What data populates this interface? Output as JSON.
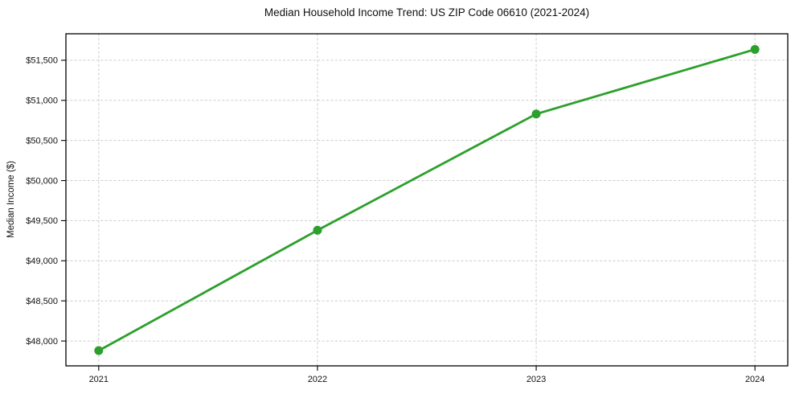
{
  "chart_data": {
    "type": "line",
    "title": "Median Household Income Trend: US ZIP Code 06610 (2021-2024)",
    "xlabel": "",
    "ylabel": "Median Income ($)",
    "x": [
      2021,
      2022,
      2023,
      2024
    ],
    "x_tick_labels": [
      "2021",
      "2022",
      "2023",
      "2024"
    ],
    "values": [
      47880,
      49380,
      50830,
      51635
    ],
    "y_ticks": [
      48000,
      48500,
      49000,
      49500,
      50000,
      50500,
      51000,
      51500
    ],
    "y_tick_labels": [
      "$48,000",
      "$48,500",
      "$49,000",
      "$49,500",
      "$50,000",
      "$50,500",
      "$51,000",
      "$51,500"
    ],
    "xlim": [
      2020.85,
      2024.15
    ],
    "ylim": [
      47690,
      51830
    ],
    "grid": true,
    "grid_style": "dashed",
    "legend": "none",
    "line_color": "#2ca02c",
    "marker": "circle",
    "marker_radius": 5.5,
    "background_color": "#ffffff",
    "grid_color": "#cccccc",
    "spine_color": "#000000"
  }
}
